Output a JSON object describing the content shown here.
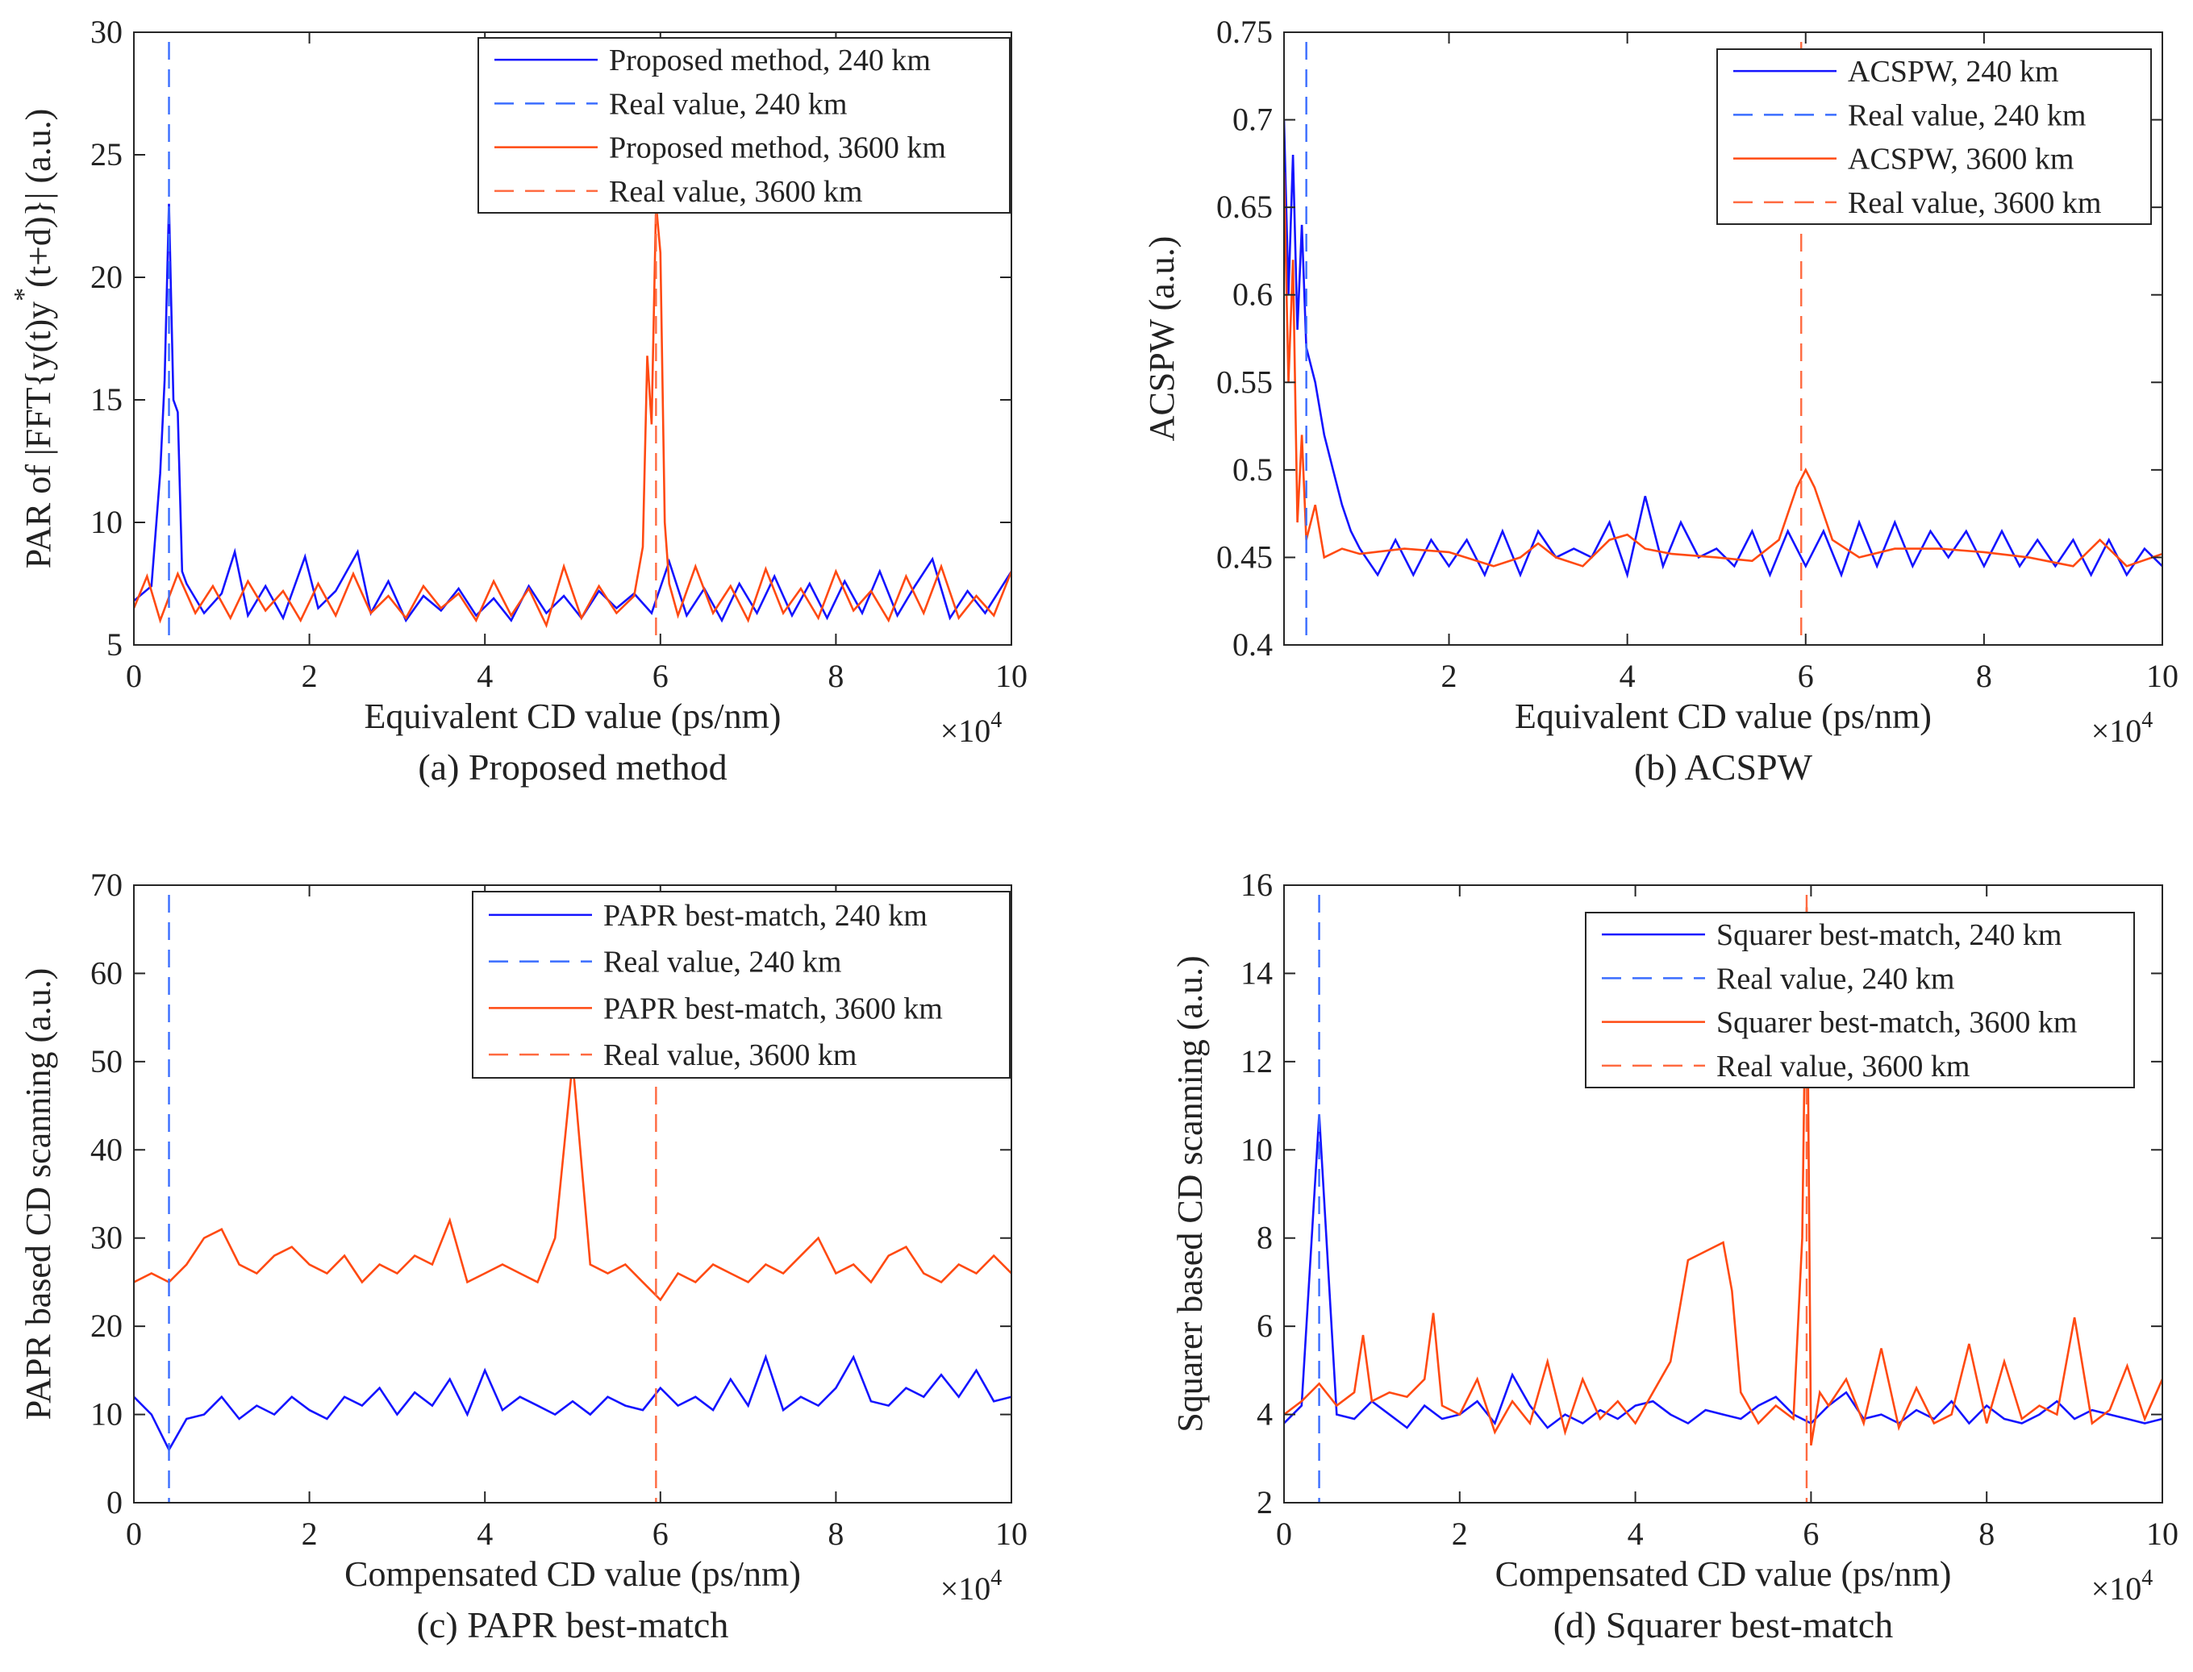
{
  "colors": {
    "blue": "#1414ff",
    "blue_dashed": "#3a6dff",
    "red": "#ff4a12",
    "red_dashed": "#ff6a40"
  },
  "chart_data": [
    {
      "type": "line",
      "caption": "(a) Proposed method",
      "xlabel": "Equivalent CD value (ps/nm)",
      "x_multiplier": {
        "base": "×10",
        "exp": "4"
      },
      "ylabel": {
        "pre": "PAR of |FFT{y(t)y",
        "sup": "*",
        "post": "(t+d)}| (a.u.)"
      },
      "xlim": [
        0,
        10
      ],
      "ylim": [
        5,
        30
      ],
      "xticks": [
        "0",
        "2",
        "4",
        "6",
        "8",
        "10"
      ],
      "xtick_values": [
        0,
        2,
        4,
        6,
        8,
        10
      ],
      "yticks": [
        "5",
        "10",
        "15",
        "20",
        "25",
        "30"
      ],
      "ytick_values": [
        5,
        10,
        15,
        20,
        25,
        30
      ],
      "legend_position": "top-right",
      "legend": [
        "Proposed method, 240 km",
        "Real value, 240 km",
        "Proposed method, 3600 km",
        "Real value, 3600 km"
      ],
      "real_values": [
        0.4,
        5.95
      ],
      "series": [
        {
          "name": "Proposed method, 240 km",
          "color": "blue",
          "x": [
            0,
            0.2,
            0.3,
            0.35,
            0.4,
            0.45,
            0.5,
            0.55,
            0.6,
            0.8,
            1,
            1.15,
            1.3,
            1.5,
            1.7,
            1.95,
            2.1,
            2.3,
            2.55,
            2.7,
            2.9,
            3.1,
            3.3,
            3.5,
            3.7,
            3.9,
            4.1,
            4.3,
            4.5,
            4.7,
            4.9,
            5.1,
            5.3,
            5.5,
            5.7,
            5.9,
            6.1,
            6.3,
            6.5,
            6.7,
            6.9,
            7.1,
            7.3,
            7.5,
            7.7,
            7.9,
            8.1,
            8.3,
            8.5,
            8.7,
            8.9,
            9.1,
            9.3,
            9.5,
            9.7,
            10
          ],
          "y": [
            6.8,
            7.4,
            12,
            15.8,
            23,
            15,
            14.5,
            8,
            7.5,
            6.3,
            7.1,
            8.8,
            6.2,
            7.4,
            6.1,
            8.6,
            6.5,
            7.2,
            8.8,
            6.3,
            7.6,
            6.0,
            7.0,
            6.4,
            7.3,
            6.2,
            6.9,
            6.0,
            7.4,
            6.3,
            7.0,
            6.1,
            7.2,
            6.5,
            7.1,
            6.3,
            8.4,
            6.2,
            7.3,
            6.0,
            7.5,
            6.3,
            7.8,
            6.2,
            7.5,
            6.1,
            7.6,
            6.3,
            8.0,
            6.2,
            7.4,
            8.5,
            6.1,
            7.2,
            6.3,
            8.0
          ]
        },
        {
          "name": "Proposed method, 3600 km",
          "color": "red",
          "x": [
            0,
            0.15,
            0.3,
            0.5,
            0.7,
            0.9,
            1.1,
            1.3,
            1.5,
            1.7,
            1.9,
            2.1,
            2.3,
            2.5,
            2.7,
            2.9,
            3.1,
            3.3,
            3.5,
            3.7,
            3.9,
            4.1,
            4.3,
            4.5,
            4.7,
            4.9,
            5.1,
            5.3,
            5.5,
            5.7,
            5.8,
            5.85,
            5.9,
            5.95,
            6.0,
            6.05,
            6.1,
            6.2,
            6.4,
            6.6,
            6.8,
            7.0,
            7.2,
            7.4,
            7.6,
            7.8,
            8.0,
            8.2,
            8.4,
            8.6,
            8.8,
            9.0,
            9.2,
            9.4,
            9.6,
            9.8,
            10
          ],
          "y": [
            6.5,
            7.8,
            6.0,
            7.9,
            6.3,
            7.4,
            6.1,
            7.6,
            6.4,
            7.2,
            6.0,
            7.5,
            6.2,
            7.9,
            6.3,
            7.0,
            6.1,
            7.4,
            6.5,
            7.1,
            6.0,
            7.6,
            6.2,
            7.3,
            5.8,
            8.2,
            6.1,
            7.4,
            6.3,
            7.0,
            9,
            16.8,
            14,
            23,
            21,
            10,
            7.5,
            6.2,
            8.2,
            6.3,
            7.4,
            6.0,
            8.1,
            6.3,
            7.3,
            6.1,
            8.0,
            6.4,
            7.2,
            6.0,
            7.8,
            6.3,
            8.2,
            6.1,
            7.0,
            6.2,
            8.0
          ]
        }
      ]
    },
    {
      "type": "line",
      "caption": "(b) ACSPW",
      "xlabel": "Equivalent CD value (ps/nm)",
      "x_multiplier": {
        "base": "×10",
        "exp": "4"
      },
      "ylabel": {
        "pre": "ACSPW (a.u.)",
        "sup": "",
        "post": ""
      },
      "xlim": [
        0.15,
        10
      ],
      "ylim": [
        0.4,
        0.75
      ],
      "xticks": [
        "2",
        "4",
        "6",
        "8",
        "10"
      ],
      "xtick_values": [
        2,
        4,
        6,
        8,
        10
      ],
      "yticks": [
        "0.4",
        "0.45",
        "0.5",
        "0.55",
        "0.6",
        "0.65",
        "0.7",
        "0.75"
      ],
      "ytick_values": [
        0.4,
        0.45,
        0.5,
        0.55,
        0.6,
        0.65,
        0.7,
        0.75
      ],
      "legend_position": "top-right",
      "legend": [
        "ACSPW, 240 km",
        "Real value, 240 km",
        "ACSPW, 3600 km",
        "Real value, 3600 km"
      ],
      "real_values": [
        0.4,
        5.95
      ],
      "series": [
        {
          "name": "ACSPW, 240 km",
          "color": "blue",
          "x": [
            0.15,
            0.2,
            0.25,
            0.3,
            0.35,
            0.4,
            0.5,
            0.6,
            0.7,
            0.8,
            0.9,
            1.0,
            1.2,
            1.4,
            1.6,
            1.8,
            2.0,
            2.2,
            2.4,
            2.6,
            2.8,
            3.0,
            3.2,
            3.4,
            3.6,
            3.8,
            4.0,
            4.2,
            4.4,
            4.6,
            4.8,
            5.0,
            5.2,
            5.4,
            5.6,
            5.8,
            6.0,
            6.2,
            6.4,
            6.6,
            6.8,
            7.0,
            7.2,
            7.4,
            7.6,
            7.8,
            8.0,
            8.2,
            8.4,
            8.6,
            8.8,
            9.0,
            9.2,
            9.4,
            9.6,
            9.8,
            10
          ],
          "y": [
            0.7,
            0.6,
            0.68,
            0.58,
            0.64,
            0.57,
            0.55,
            0.52,
            0.5,
            0.48,
            0.465,
            0.455,
            0.44,
            0.46,
            0.44,
            0.46,
            0.445,
            0.46,
            0.44,
            0.465,
            0.44,
            0.465,
            0.45,
            0.455,
            0.45,
            0.47,
            0.44,
            0.485,
            0.445,
            0.47,
            0.45,
            0.455,
            0.445,
            0.465,
            0.44,
            0.465,
            0.445,
            0.465,
            0.44,
            0.47,
            0.445,
            0.47,
            0.445,
            0.465,
            0.45,
            0.465,
            0.445,
            0.465,
            0.445,
            0.46,
            0.445,
            0.46,
            0.44,
            0.46,
            0.44,
            0.455,
            0.445
          ]
        },
        {
          "name": "ACSPW, 3600 km",
          "color": "red",
          "x": [
            0.15,
            0.2,
            0.25,
            0.3,
            0.35,
            0.4,
            0.5,
            0.6,
            0.8,
            1.0,
            1.5,
            2.0,
            2.5,
            2.8,
            3.0,
            3.2,
            3.5,
            3.8,
            4.0,
            4.2,
            4.5,
            5.0,
            5.4,
            5.7,
            5.9,
            6.0,
            6.1,
            6.3,
            6.6,
            7.0,
            7.5,
            8.0,
            8.5,
            9.0,
            9.3,
            9.6,
            10
          ],
          "y": [
            0.67,
            0.55,
            0.62,
            0.47,
            0.52,
            0.46,
            0.48,
            0.45,
            0.455,
            0.452,
            0.455,
            0.453,
            0.445,
            0.45,
            0.458,
            0.45,
            0.445,
            0.46,
            0.463,
            0.455,
            0.452,
            0.45,
            0.448,
            0.46,
            0.49,
            0.5,
            0.49,
            0.46,
            0.45,
            0.455,
            0.455,
            0.453,
            0.45,
            0.445,
            0.46,
            0.445,
            0.452
          ]
        }
      ]
    },
    {
      "type": "line",
      "caption": "(c) PAPR best-match",
      "xlabel": "Compensated CD value (ps/nm)",
      "x_multiplier": {
        "base": "×10",
        "exp": "4"
      },
      "ylabel": {
        "pre": "PAPR based CD scanning (a.u.)",
        "sup": "",
        "post": ""
      },
      "xlim": [
        0,
        10
      ],
      "ylim": [
        0,
        70
      ],
      "xticks": [
        "0",
        "2",
        "4",
        "6",
        "8",
        "10"
      ],
      "xtick_values": [
        0,
        2,
        4,
        6,
        8,
        10
      ],
      "yticks": [
        "0",
        "10",
        "20",
        "30",
        "40",
        "50",
        "60",
        "70"
      ],
      "ytick_values": [
        0,
        10,
        20,
        30,
        40,
        50,
        60,
        70
      ],
      "legend_position": "top-right",
      "legend": [
        "PAPR best-match, 240 km",
        "Real value, 240 km",
        "PAPR best-match, 3600 km",
        "Real value, 3600 km"
      ],
      "real_values": [
        0.4,
        5.95
      ],
      "series": [
        {
          "name": "PAPR best-match, 240 km",
          "color": "blue",
          "x0": 0,
          "dx": 0.2,
          "y": [
            12,
            10,
            6,
            9.5,
            10,
            12,
            9.5,
            11,
            10,
            12,
            10.5,
            9.5,
            12,
            11,
            13,
            10,
            12.5,
            11,
            14,
            10,
            15,
            10.5,
            12,
            11,
            10,
            11.5,
            10,
            12,
            11,
            10.5,
            13,
            11,
            12,
            10.5,
            14,
            11,
            16.5,
            10.5,
            12,
            11,
            13,
            16.5,
            11.5,
            11,
            13,
            12,
            14.5,
            12,
            15,
            11.5,
            12
          ]
        },
        {
          "name": "PAPR best-match, 3600 km",
          "color": "red",
          "x0": 0,
          "dx": 0.2,
          "y": [
            25,
            26,
            25,
            27,
            30,
            31,
            27,
            26,
            28,
            29,
            27,
            26,
            28,
            25,
            27,
            26,
            28,
            27,
            32,
            25,
            26,
            27,
            26,
            25,
            30,
            50,
            27,
            26,
            27,
            25,
            23,
            26,
            25,
            27,
            26,
            25,
            27,
            26,
            28,
            30,
            26,
            27,
            25,
            28,
            29,
            26,
            25,
            27,
            26,
            28,
            26
          ]
        }
      ]
    },
    {
      "type": "line",
      "caption": "(d) Squarer best-match",
      "xlabel": "Compensated CD value (ps/nm)",
      "x_multiplier": {
        "base": "×10",
        "exp": "4"
      },
      "ylabel": {
        "pre": "Squarer based CD scanning (a.u.)",
        "sup": "",
        "post": ""
      },
      "xlim": [
        0,
        10
      ],
      "ylim": [
        2,
        16
      ],
      "xticks": [
        "0",
        "2",
        "4",
        "6",
        "8",
        "10"
      ],
      "xtick_values": [
        0,
        2,
        4,
        6,
        8,
        10
      ],
      "yticks": [
        "2",
        "4",
        "6",
        "8",
        "10",
        "12",
        "14",
        "16"
      ],
      "ytick_values": [
        2,
        4,
        6,
        8,
        10,
        12,
        14,
        16
      ],
      "legend_position": "top-right",
      "legend": [
        "Squarer best-match, 240 km",
        "Real value, 240 km",
        "Squarer best-match, 3600 km",
        "Real value, 3600 km"
      ],
      "real_values": [
        0.4,
        5.95
      ],
      "series": [
        {
          "name": "Squarer best-match, 240 km",
          "color": "blue",
          "x0": 0,
          "dx": 0.2,
          "y": [
            3.8,
            4.2,
            10.8,
            4.0,
            3.9,
            4.3,
            4.0,
            3.7,
            4.2,
            3.9,
            4.0,
            4.3,
            3.8,
            4.9,
            4.2,
            3.7,
            4.0,
            3.8,
            4.1,
            3.9,
            4.2,
            4.3,
            4.0,
            3.8,
            4.1,
            4.0,
            3.9,
            4.2,
            4.4,
            4.0,
            3.8,
            4.2,
            4.5,
            3.9,
            4.0,
            3.8,
            4.1,
            3.9,
            4.3,
            3.8,
            4.2,
            3.9,
            3.8,
            4.0,
            4.3,
            3.9,
            4.1,
            4.0,
            3.9,
            3.8,
            3.9
          ]
        },
        {
          "name": "Squarer best-match, 3600 km",
          "color": "red",
          "x": [
            0,
            0.2,
            0.4,
            0.6,
            0.8,
            0.9,
            1.0,
            1.2,
            1.4,
            1.6,
            1.7,
            1.8,
            2.0,
            2.2,
            2.4,
            2.6,
            2.8,
            3.0,
            3.2,
            3.4,
            3.6,
            3.8,
            4.0,
            4.2,
            4.4,
            4.6,
            4.8,
            5.0,
            5.1,
            5.2,
            5.4,
            5.6,
            5.8,
            5.9,
            5.95,
            6.0,
            6.1,
            6.2,
            6.4,
            6.6,
            6.8,
            7.0,
            7.2,
            7.4,
            7.6,
            7.8,
            8.0,
            8.2,
            8.4,
            8.6,
            8.8,
            9.0,
            9.2,
            9.4,
            9.6,
            9.8,
            10
          ],
          "y": [
            4.0,
            4.3,
            4.7,
            4.2,
            4.5,
            5.8,
            4.3,
            4.5,
            4.4,
            4.8,
            6.3,
            4.2,
            4.0,
            4.8,
            3.6,
            4.3,
            3.8,
            5.2,
            3.6,
            4.8,
            3.9,
            4.3,
            3.8,
            4.5,
            5.2,
            7.5,
            7.7,
            7.9,
            6.8,
            4.5,
            3.8,
            4.2,
            3.9,
            8.0,
            15.5,
            3.3,
            4.5,
            4.2,
            4.8,
            3.8,
            5.5,
            3.7,
            4.6,
            3.8,
            4.0,
            5.6,
            3.8,
            5.2,
            3.9,
            4.2,
            4.0,
            6.2,
            3.8,
            4.1,
            5.1,
            3.9,
            4.8
          ]
        }
      ]
    }
  ]
}
